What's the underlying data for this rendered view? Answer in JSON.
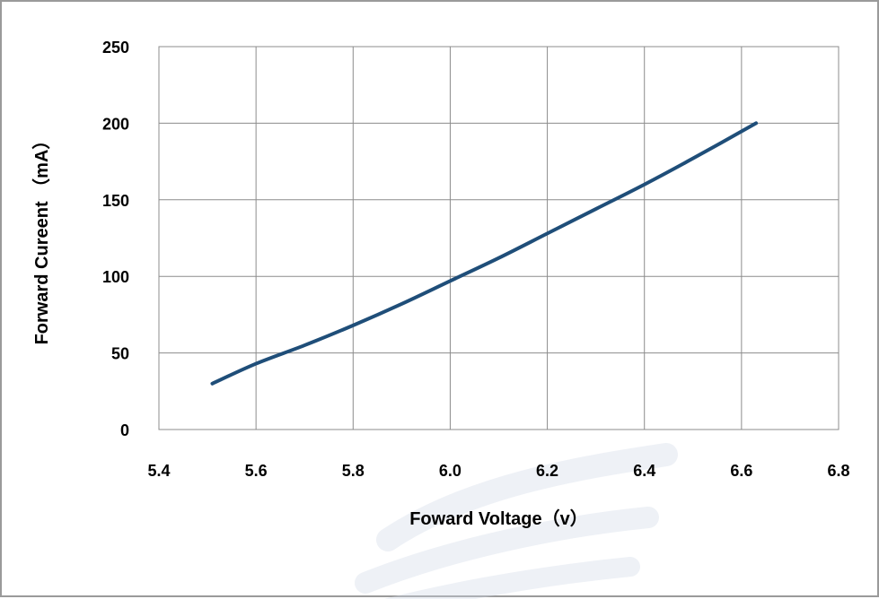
{
  "chart_data": {
    "type": "line",
    "title": "",
    "xlabel": "Foward Voltage（v）",
    "ylabel": "Forward Cureent （mA）",
    "xlim": [
      5.4,
      6.8
    ],
    "ylim": [
      0,
      250
    ],
    "xticks": [
      "5.4",
      "5.6",
      "5.8",
      "6.0",
      "6.2",
      "6.4",
      "6.6",
      "6.8"
    ],
    "yticks": [
      "0",
      "50",
      "100",
      "150",
      "200",
      "250"
    ],
    "grid": true,
    "legend": "none",
    "series": [
      {
        "color": "#1f4e79",
        "x": [
          5.51,
          5.6,
          5.7,
          5.8,
          5.9,
          6.0,
          6.1,
          6.2,
          6.3,
          6.4,
          6.5,
          6.63
        ],
        "y": [
          30,
          43,
          55,
          68,
          82,
          97,
          112,
          128,
          144,
          160,
          177,
          200
        ]
      }
    ]
  }
}
